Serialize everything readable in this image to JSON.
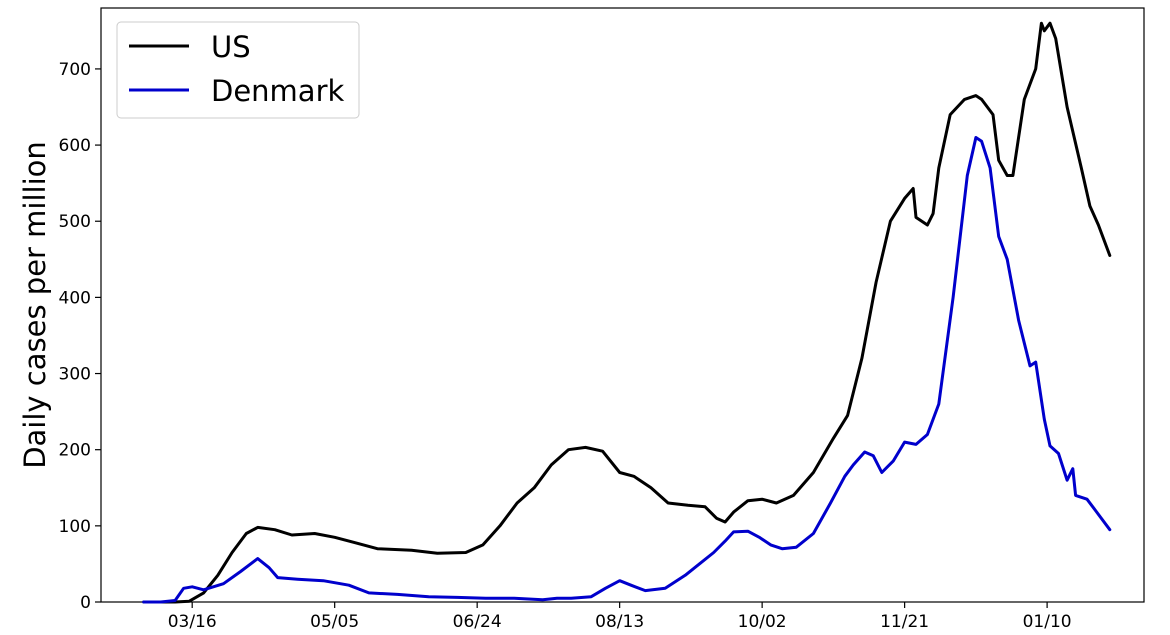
{
  "chart_data": {
    "type": "line",
    "title": "",
    "xlabel": "",
    "ylabel": "Daily cases per million",
    "ylim": [
      0,
      780
    ],
    "xlim": [
      "2020-02-13",
      "2021-02-13"
    ],
    "grid": false,
    "legend": "top-left",
    "x_ticks": [
      {
        "date": "2020-03-16",
        "label": "03/16"
      },
      {
        "date": "2020-05-05",
        "label": "05/05"
      },
      {
        "date": "2020-06-24",
        "label": "06/24"
      },
      {
        "date": "2020-08-13",
        "label": "08/13"
      },
      {
        "date": "2020-10-02",
        "label": "10/02"
      },
      {
        "date": "2020-11-21",
        "label": "11/21"
      },
      {
        "date": "2021-01-10",
        "label": "01/10"
      }
    ],
    "y_ticks": [
      0,
      100,
      200,
      300,
      400,
      500,
      600,
      700
    ],
    "series": [
      {
        "name": "US",
        "color": "#000000",
        "points": [
          [
            "2020-02-28",
            0
          ],
          [
            "2020-03-10",
            0
          ],
          [
            "2020-03-15",
            1
          ],
          [
            "2020-03-20",
            12
          ],
          [
            "2020-03-25",
            35
          ],
          [
            "2020-03-30",
            65
          ],
          [
            "2020-04-04",
            90
          ],
          [
            "2020-04-08",
            98
          ],
          [
            "2020-04-14",
            95
          ],
          [
            "2020-04-20",
            88
          ],
          [
            "2020-04-28",
            90
          ],
          [
            "2020-05-05",
            85
          ],
          [
            "2020-05-12",
            78
          ],
          [
            "2020-05-20",
            70
          ],
          [
            "2020-06-01",
            68
          ],
          [
            "2020-06-10",
            64
          ],
          [
            "2020-06-20",
            65
          ],
          [
            "2020-06-26",
            75
          ],
          [
            "2020-07-02",
            100
          ],
          [
            "2020-07-08",
            130
          ],
          [
            "2020-07-14",
            150
          ],
          [
            "2020-07-20",
            180
          ],
          [
            "2020-07-26",
            200
          ],
          [
            "2020-08-01",
            203
          ],
          [
            "2020-08-07",
            198
          ],
          [
            "2020-08-13",
            170
          ],
          [
            "2020-08-18",
            165
          ],
          [
            "2020-08-24",
            150
          ],
          [
            "2020-08-30",
            130
          ],
          [
            "2020-09-06",
            127
          ],
          [
            "2020-09-12",
            125
          ],
          [
            "2020-09-16",
            110
          ],
          [
            "2020-09-19",
            105
          ],
          [
            "2020-09-22",
            118
          ],
          [
            "2020-09-27",
            133
          ],
          [
            "2020-10-02",
            135
          ],
          [
            "2020-10-07",
            130
          ],
          [
            "2020-10-13",
            140
          ],
          [
            "2020-10-20",
            170
          ],
          [
            "2020-10-27",
            215
          ],
          [
            "2020-11-01",
            245
          ],
          [
            "2020-11-06",
            320
          ],
          [
            "2020-11-11",
            420
          ],
          [
            "2020-11-16",
            500
          ],
          [
            "2020-11-21",
            530
          ],
          [
            "2020-11-24",
            543
          ],
          [
            "2020-11-25",
            505
          ],
          [
            "2020-11-29",
            495
          ],
          [
            "2020-12-01",
            510
          ],
          [
            "2020-12-03",
            570
          ],
          [
            "2020-12-07",
            640
          ],
          [
            "2020-12-12",
            660
          ],
          [
            "2020-12-16",
            665
          ],
          [
            "2020-12-18",
            660
          ],
          [
            "2020-12-22",
            640
          ],
          [
            "2020-12-24",
            580
          ],
          [
            "2020-12-27",
            560
          ],
          [
            "2020-12-29",
            560
          ],
          [
            "2021-01-02",
            660
          ],
          [
            "2021-01-06",
            700
          ],
          [
            "2021-01-08",
            760
          ],
          [
            "2021-01-09",
            750
          ],
          [
            "2021-01-11",
            760
          ],
          [
            "2021-01-13",
            740
          ],
          [
            "2021-01-17",
            650
          ],
          [
            "2021-01-22",
            570
          ],
          [
            "2021-01-25",
            520
          ],
          [
            "2021-01-28",
            495
          ],
          [
            "2021-02-01",
            455
          ]
        ]
      },
      {
        "name": "Denmark",
        "color": "#0000cc",
        "points": [
          [
            "2020-02-28",
            0
          ],
          [
            "2020-03-05",
            0
          ],
          [
            "2020-03-10",
            2
          ],
          [
            "2020-03-13",
            18
          ],
          [
            "2020-03-16",
            20
          ],
          [
            "2020-03-20",
            16
          ],
          [
            "2020-03-27",
            24
          ],
          [
            "2020-04-02",
            40
          ],
          [
            "2020-04-08",
            57
          ],
          [
            "2020-04-12",
            45
          ],
          [
            "2020-04-15",
            32
          ],
          [
            "2020-04-22",
            30
          ],
          [
            "2020-05-01",
            28
          ],
          [
            "2020-05-10",
            22
          ],
          [
            "2020-05-17",
            12
          ],
          [
            "2020-05-27",
            10
          ],
          [
            "2020-06-07",
            7
          ],
          [
            "2020-06-17",
            6
          ],
          [
            "2020-06-27",
            5
          ],
          [
            "2020-07-07",
            5
          ],
          [
            "2020-07-17",
            3
          ],
          [
            "2020-07-22",
            5
          ],
          [
            "2020-07-27",
            5
          ],
          [
            "2020-08-03",
            7
          ],
          [
            "2020-08-08",
            18
          ],
          [
            "2020-08-13",
            28
          ],
          [
            "2020-08-17",
            22
          ],
          [
            "2020-08-22",
            15
          ],
          [
            "2020-08-29",
            18
          ],
          [
            "2020-09-05",
            35
          ],
          [
            "2020-09-10",
            50
          ],
          [
            "2020-09-15",
            65
          ],
          [
            "2020-09-19",
            80
          ],
          [
            "2020-09-22",
            92
          ],
          [
            "2020-09-27",
            93
          ],
          [
            "2020-10-01",
            85
          ],
          [
            "2020-10-05",
            75
          ],
          [
            "2020-10-09",
            70
          ],
          [
            "2020-10-14",
            72
          ],
          [
            "2020-10-20",
            90
          ],
          [
            "2020-10-26",
            130
          ],
          [
            "2020-10-31",
            165
          ],
          [
            "2020-11-03",
            180
          ],
          [
            "2020-11-07",
            197
          ],
          [
            "2020-11-10",
            192
          ],
          [
            "2020-11-13",
            170
          ],
          [
            "2020-11-17",
            185
          ],
          [
            "2020-11-21",
            210
          ],
          [
            "2020-11-25",
            207
          ],
          [
            "2020-11-29",
            220
          ],
          [
            "2020-12-03",
            260
          ],
          [
            "2020-12-08",
            400
          ],
          [
            "2020-12-13",
            560
          ],
          [
            "2020-12-16",
            610
          ],
          [
            "2020-12-18",
            605
          ],
          [
            "2020-12-21",
            570
          ],
          [
            "2020-12-24",
            480
          ],
          [
            "2020-12-27",
            450
          ],
          [
            "2020-12-31",
            370
          ],
          [
            "2021-01-04",
            310
          ],
          [
            "2021-01-06",
            315
          ],
          [
            "2021-01-09",
            240
          ],
          [
            "2021-01-11",
            205
          ],
          [
            "2021-01-14",
            195
          ],
          [
            "2021-01-17",
            160
          ],
          [
            "2021-01-19",
            175
          ],
          [
            "2021-01-20",
            140
          ],
          [
            "2021-01-24",
            135
          ],
          [
            "2021-01-27",
            120
          ],
          [
            "2021-02-01",
            95
          ]
        ]
      }
    ]
  }
}
